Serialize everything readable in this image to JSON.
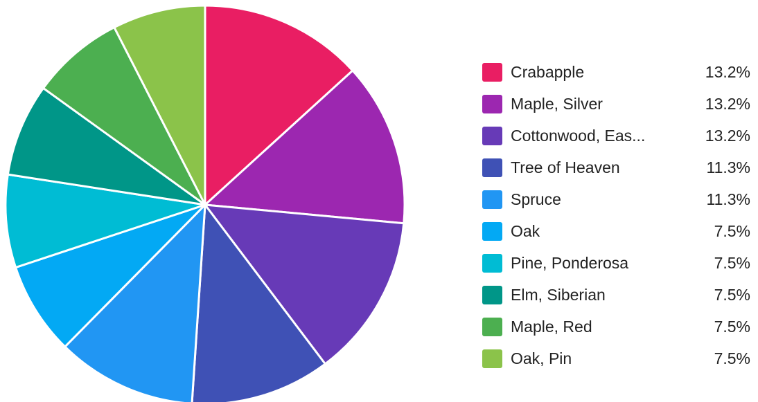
{
  "chart_data": {
    "type": "pie",
    "labels": [
      "Crabapple",
      "Maple, Silver",
      "Cottonwood, Eas...",
      "Tree of Heaven",
      "Spruce",
      "Oak",
      "Pine, Ponderosa",
      "Elm, Siberian",
      "Maple, Red",
      "Oak, Pin"
    ],
    "values": [
      13.2,
      13.2,
      13.2,
      11.3,
      11.3,
      7.5,
      7.5,
      7.5,
      7.5,
      7.5
    ],
    "value_labels": [
      "13.2%",
      "13.2%",
      "13.2%",
      "11.3%",
      "11.3%",
      "7.5%",
      "7.5%",
      "7.5%",
      "7.5%",
      "7.5%"
    ],
    "colors": [
      "#e91e63",
      "#9c27b0",
      "#673ab7",
      "#3f51b5",
      "#2196f3",
      "#03a9f4",
      "#00bcd4",
      "#009688",
      "#4caf50",
      "#8bc34a"
    ],
    "legend_position": "right",
    "start_angle": "12 o'clock",
    "direction": "clockwise"
  }
}
